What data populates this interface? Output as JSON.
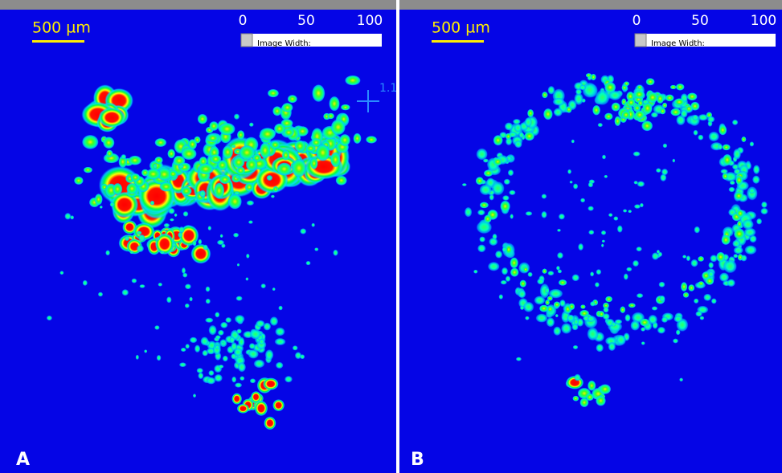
{
  "panels": [
    {
      "label": "A",
      "scale_bar": "500 µm",
      "colorbar": {
        "ticks": [
          "0",
          "50",
          "100"
        ],
        "field": "Image Width:"
      },
      "marker": "1.1"
    },
    {
      "label": "B",
      "scale_bar": "500 µm",
      "colorbar": {
        "ticks": [
          "0",
          "50",
          "100"
        ],
        "field": "Image Width:"
      }
    }
  ]
}
